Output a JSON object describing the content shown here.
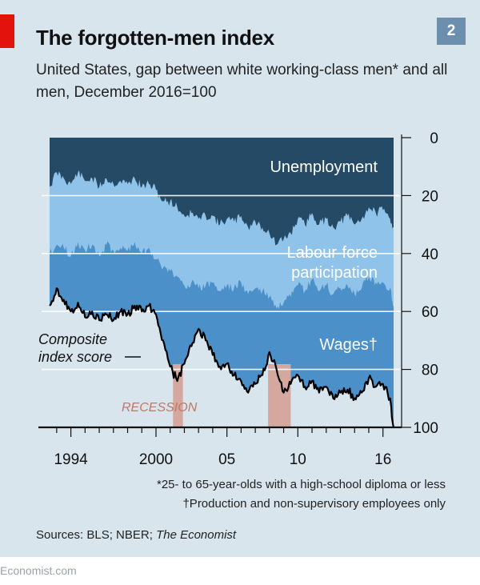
{
  "header": {
    "title": "The forgotten-men index",
    "badge": "2",
    "subtitle": "United States, gap between white working-class men* and all men, December 2016=100"
  },
  "footnotes": {
    "note1": "*25- to 65-year-olds with a high-school diploma or less",
    "note2": "†Production and non-supervisory employees only"
  },
  "sources": {
    "label": "Sources: BLS; NBER; ",
    "italic": "The Economist"
  },
  "brand": "Economist.com",
  "colors": {
    "unemployment": "#254a66",
    "labour": "#8fc3ea",
    "wages": "#4b90c9",
    "composite": "#000000",
    "recession": "#d4a89f",
    "background": "#d9e5ed"
  },
  "chart_data": {
    "type": "area",
    "title": "The forgotten-men index",
    "subtitle": "United States, gap between white working-class men* and all men, December 2016=100",
    "x_range": [
      1992.5,
      2016.75
    ],
    "y_range": [
      0,
      100
    ],
    "y_inverted": true,
    "y_ticks": [
      "0",
      "20",
      "40",
      "60",
      "80",
      "100"
    ],
    "x_ticks": [
      {
        "year": 1994,
        "label": "1994"
      },
      {
        "year": 2000,
        "label": "2000"
      },
      {
        "year": 2005,
        "label": "05"
      },
      {
        "year": 2010,
        "label": "10"
      },
      {
        "year": 2016,
        "label": "16"
      }
    ],
    "recessions": [
      {
        "start": 2001.2,
        "end": 2001.9,
        "label": "RECESSION"
      },
      {
        "start": 2007.9,
        "end": 2009.5
      }
    ],
    "series_labels": {
      "unemployment": "Unemployment",
      "labour": [
        "Labour-force",
        "participation"
      ],
      "wages": "Wages†",
      "composite": [
        "Composite",
        "index score"
      ]
    },
    "series": [
      {
        "name": "Unemployment",
        "x": [
          1992.5,
          1993.0,
          1993.5,
          1994.0,
          1994.5,
          1995.0,
          1995.5,
          1996.0,
          1996.5,
          1997.0,
          1997.5,
          1998.0,
          1998.5,
          1999.0,
          1999.5,
          2000.0,
          2000.5,
          2001.0,
          2001.5,
          2002.0,
          2002.5,
          2003.0,
          2003.5,
          2004.0,
          2004.5,
          2005.0,
          2005.5,
          2006.0,
          2006.5,
          2007.0,
          2007.5,
          2008.0,
          2008.5,
          2009.0,
          2009.5,
          2010.0,
          2010.5,
          2011.0,
          2011.5,
          2012.0,
          2012.5,
          2013.0,
          2013.5,
          2014.0,
          2014.5,
          2015.0,
          2015.5,
          2016.0,
          2016.5,
          2016.75
        ],
        "values": [
          17,
          12,
          14,
          16,
          12,
          15,
          14,
          17,
          14,
          16,
          15,
          16,
          14,
          17,
          16,
          18,
          22,
          22,
          24,
          27,
          26,
          28,
          27,
          27,
          30,
          28,
          29,
          27,
          31,
          29,
          31,
          33,
          37,
          35,
          33,
          28,
          30,
          26,
          30,
          28,
          31,
          29,
          27,
          30,
          28,
          24,
          26,
          25,
          28,
          31
        ]
      },
      {
        "name": "Labour-force participation",
        "x": [
          1992.5,
          1993.0,
          1993.5,
          1994.0,
          1994.5,
          1995.0,
          1995.5,
          1996.0,
          1996.5,
          1997.0,
          1997.5,
          1998.0,
          1998.5,
          1999.0,
          1999.5,
          2000.0,
          2000.5,
          2001.0,
          2001.5,
          2002.0,
          2002.5,
          2003.0,
          2003.5,
          2004.0,
          2004.5,
          2005.0,
          2005.5,
          2006.0,
          2006.5,
          2007.0,
          2007.5,
          2008.0,
          2008.5,
          2009.0,
          2009.5,
          2010.0,
          2010.5,
          2011.0,
          2011.5,
          2012.0,
          2012.5,
          2013.0,
          2013.5,
          2014.0,
          2014.5,
          2015.0,
          2015.5,
          2016.0,
          2016.5,
          2016.75
        ],
        "values": [
          40,
          37,
          38,
          41,
          36,
          39,
          37,
          41,
          37,
          39,
          38,
          39,
          36,
          40,
          38,
          42,
          45,
          46,
          48,
          51,
          50,
          52,
          51,
          50,
          53,
          51,
          52,
          50,
          54,
          52,
          53,
          55,
          59,
          57,
          55,
          51,
          53,
          49,
          53,
          51,
          54,
          52,
          51,
          54,
          52,
          48,
          50,
          50,
          52,
          58
        ]
      },
      {
        "name": "Wages",
        "x": [
          1992.5,
          1993.0,
          1993.5,
          1994.0,
          1994.5,
          1995.0,
          1995.5,
          1996.0,
          1996.5,
          1997.0,
          1997.5,
          1998.0,
          1998.5,
          1999.0,
          1999.5,
          2000.0,
          2000.5,
          2001.0,
          2001.5,
          2002.0,
          2002.5,
          2003.0,
          2003.5,
          2004.0,
          2004.5,
          2005.0,
          2005.5,
          2006.0,
          2006.5,
          2007.0,
          2007.5,
          2008.0,
          2008.5,
          2009.0,
          2009.5,
          2010.0,
          2010.5,
          2011.0,
          2011.5,
          2012.0,
          2012.5,
          2013.0,
          2013.5,
          2014.0,
          2014.5,
          2015.0,
          2015.5,
          2016.0,
          2016.5,
          2016.75
        ],
        "values": [
          58,
          52,
          56,
          60,
          57,
          62,
          60,
          63,
          61,
          63,
          60,
          61,
          58,
          60,
          58,
          61,
          70,
          79,
          84,
          78,
          72,
          66,
          70,
          75,
          79,
          78,
          82,
          84,
          88,
          85,
          82,
          74,
          80,
          88,
          85,
          82,
          86,
          84,
          88,
          86,
          90,
          88,
          87,
          90,
          88,
          83,
          86,
          85,
          90,
          100
        ]
      },
      {
        "name": "Composite index score",
        "x": [
          1992.5,
          1993.0,
          1993.5,
          1994.0,
          1994.5,
          1995.0,
          1995.5,
          1996.0,
          1996.5,
          1997.0,
          1997.5,
          1998.0,
          1998.5,
          1999.0,
          1999.5,
          2000.0,
          2000.5,
          2001.0,
          2001.5,
          2002.0,
          2002.5,
          2003.0,
          2003.5,
          2004.0,
          2004.5,
          2005.0,
          2005.5,
          2006.0,
          2006.5,
          2007.0,
          2007.5,
          2008.0,
          2008.5,
          2009.0,
          2009.5,
          2010.0,
          2010.5,
          2011.0,
          2011.5,
          2012.0,
          2012.5,
          2013.0,
          2013.5,
          2014.0,
          2014.5,
          2015.0,
          2015.5,
          2016.0,
          2016.5,
          2016.75
        ],
        "values": [
          58,
          52,
          56,
          60,
          57,
          62,
          60,
          63,
          61,
          63,
          60,
          61,
          58,
          60,
          58,
          61,
          70,
          79,
          84,
          78,
          72,
          66,
          70,
          75,
          79,
          78,
          82,
          84,
          88,
          85,
          82,
          74,
          80,
          88,
          85,
          82,
          86,
          84,
          88,
          86,
          90,
          88,
          87,
          90,
          88,
          83,
          86,
          85,
          90,
          100
        ]
      }
    ]
  }
}
